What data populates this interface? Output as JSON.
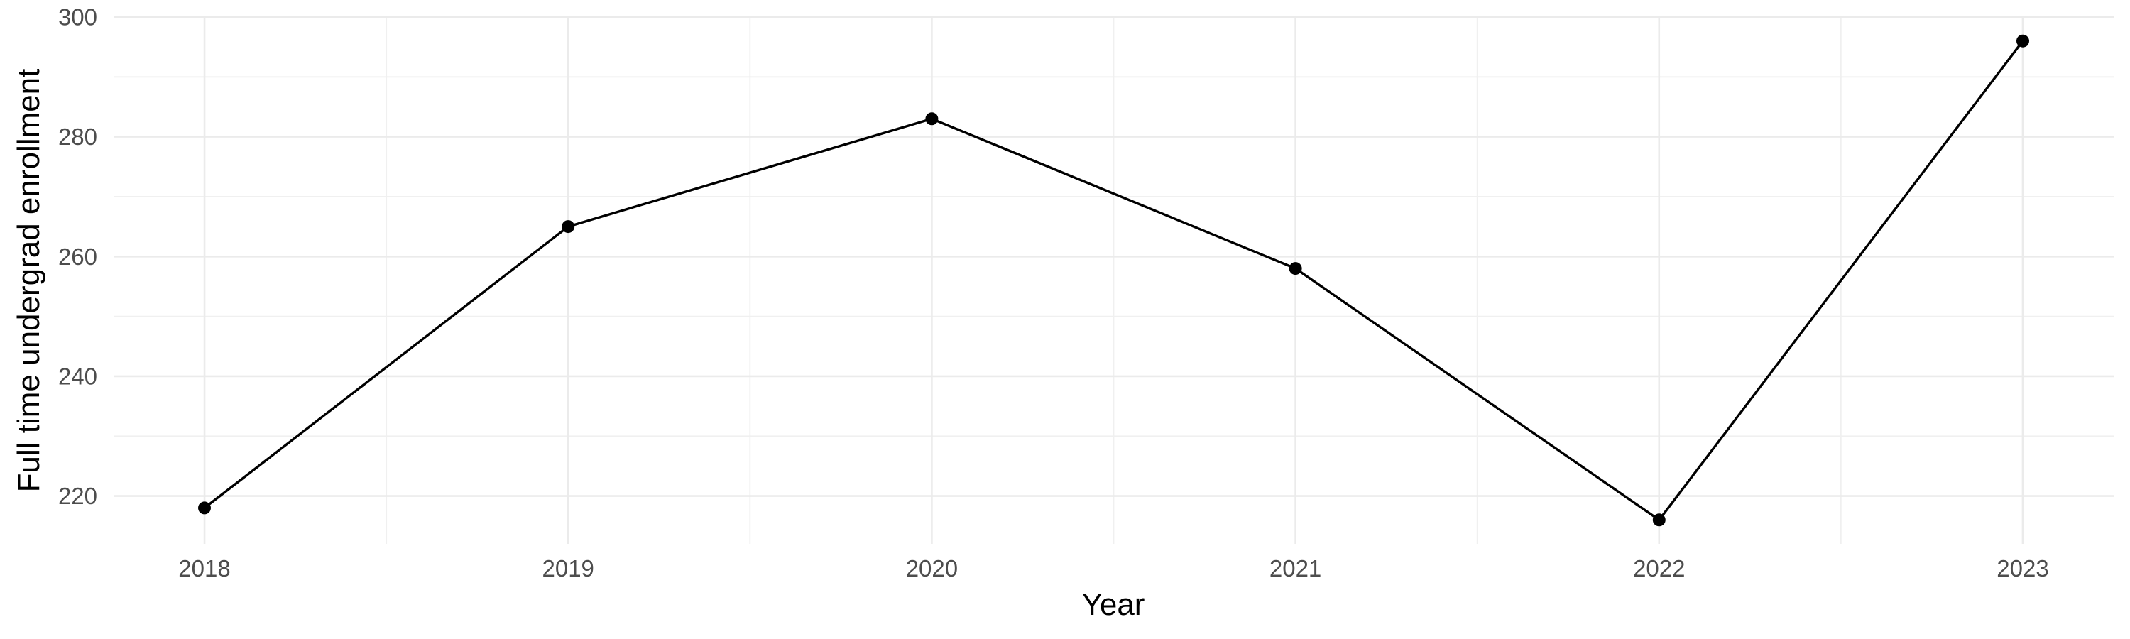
{
  "chart_data": {
    "type": "line",
    "title": "",
    "xlabel": "Year",
    "ylabel": "Full time undergrad enrollment",
    "series": [
      {
        "name": "Full time undergrad enrollment",
        "x": [
          2018,
          2019,
          2020,
          2021,
          2022,
          2023
        ],
        "values": [
          218,
          265,
          283,
          258,
          216,
          296
        ]
      }
    ],
    "x_ticks": [
      2018,
      2019,
      2020,
      2021,
      2022,
      2023
    ],
    "y_ticks": [
      220,
      240,
      260,
      280,
      300
    ],
    "y_minor_gridlines": [
      230,
      250,
      270,
      290
    ],
    "x_minor_gridlines": [
      2018.5,
      2019.5,
      2020.5,
      2021.5,
      2022.5
    ],
    "xlim": [
      2017.75,
      2023.25
    ],
    "ylim": [
      212,
      300
    ],
    "grid": "on",
    "legend_position": "none",
    "colors": {
      "line": "#000000",
      "point": "#000000",
      "major_grid": "#EBEBEB",
      "minor_grid": "#F0F0F0",
      "tick_label": "#4D4D4D",
      "axis_title": "#000000",
      "background": "#FFFFFF"
    }
  }
}
